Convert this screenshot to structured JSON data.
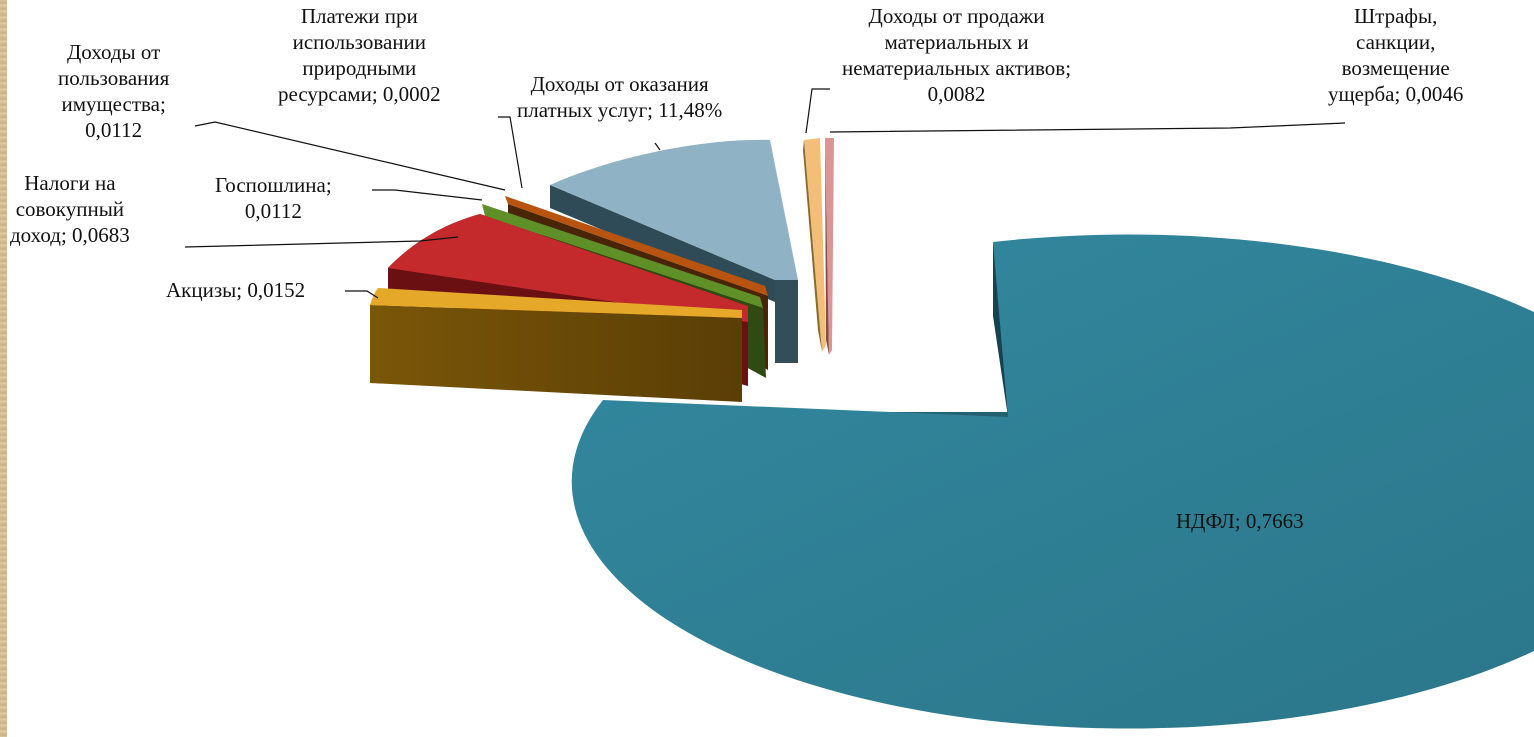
{
  "chart_data": {
    "type": "pie",
    "three_d": true,
    "exploded": true,
    "legend": "none",
    "slices": [
      {
        "label": [
          "НДФЛ; 0,7663"
        ],
        "value": 0.7663,
        "color": "#2f7f94"
      },
      {
        "label": [
          "Штрафы,",
          "санкции,",
          "возмещение",
          "ущерба; 0,0046"
        ],
        "value": 0.0046,
        "color": "#d99694"
      },
      {
        "label": [
          "Доходы от продажи",
          "материальных и",
          "нематериальных активов;",
          "0,0082"
        ],
        "value": 0.0082,
        "color": "#f4c07a"
      },
      {
        "label": [
          "Доходы от оказания",
          "платных услуг; 11,48%"
        ],
        "value": 0.1148,
        "color": "#93b6c6"
      },
      {
        "label": [
          "Платежи при",
          "использовании",
          "природными",
          "ресурсами; 0,0002"
        ],
        "value": 0.0002,
        "color": "#8064a2"
      },
      {
        "label": [
          "Доходы от",
          "пользования",
          "имущества;",
          "0,0112"
        ],
        "value": 0.0112,
        "color": "#c0570f"
      },
      {
        "label": [
          "Госпошлина;",
          "0,0112"
        ],
        "value": 0.0112,
        "color": "#6a9a2e"
      },
      {
        "label": [
          "Налоги на",
          "совокупный",
          "доход; 0,0683"
        ],
        "value": 0.0683,
        "color": "#c0282b"
      },
      {
        "label": [
          "Акцизы; 0,0152"
        ],
        "value": 0.0152,
        "color": "#e6a92a"
      }
    ],
    "base_color": "#6b4b0b"
  }
}
